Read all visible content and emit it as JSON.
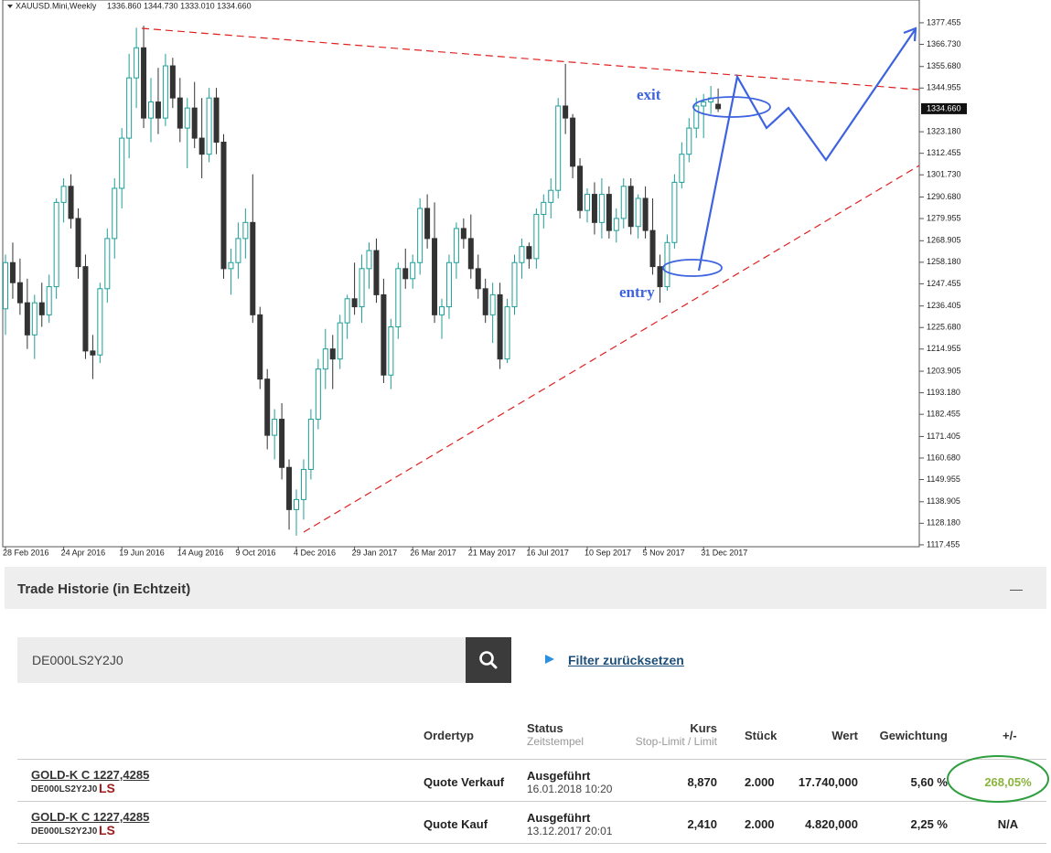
{
  "chart_data": {
    "type": "candlestick",
    "title": "XAUUSD.Mini,Weekly",
    "ohlc_label": "1336.860 1344.730 1333.010 1334.660",
    "up_color": "#1f9e98",
    "down_color": "#333333",
    "ylim": [
      1116.5,
      1388.8
    ],
    "yticks": [
      1377.455,
      {
        "value": 1366.73,
        "label": "1366.730"
      },
      {
        "value": 1355.68,
        "label": "1355.680"
      },
      1344.955,
      {
        "value": 1323.18,
        "label": "1323.180"
      },
      1312.455,
      {
        "value": 1301.73,
        "label": "1301.730"
      },
      {
        "value": 1290.68,
        "label": "1290.680"
      },
      1279.955,
      1268.905,
      {
        "value": 1258.18,
        "label": "1258.180"
      },
      1247.455,
      1236.405,
      {
        "value": 1225.68,
        "label": "1225.680"
      },
      1214.955,
      1203.905,
      {
        "value": 1193.18,
        "label": "1193.180"
      },
      1182.455,
      1171.405,
      {
        "value": 1160.68,
        "label": "1160.680"
      },
      1149.955,
      1138.905,
      {
        "value": 1128.18,
        "label": "1128.180"
      },
      1117.455
    ],
    "price_label": {
      "value": 1334.66,
      "label": "1334.660"
    },
    "categories": [
      "28 Feb 2016",
      null,
      null,
      null,
      null,
      null,
      null,
      null,
      "24 Apr 2016",
      null,
      null,
      null,
      null,
      null,
      null,
      null,
      "19 Jun 2016",
      null,
      null,
      null,
      null,
      null,
      null,
      null,
      "14 Aug 2016",
      null,
      null,
      null,
      null,
      null,
      null,
      null,
      "9 Oct 2016",
      null,
      null,
      null,
      null,
      null,
      null,
      null,
      "4 Dec 2016",
      null,
      null,
      null,
      null,
      null,
      null,
      null,
      "29 Jan 2017",
      null,
      null,
      null,
      null,
      null,
      null,
      null,
      "26 Mar 2017",
      null,
      null,
      null,
      null,
      null,
      null,
      null,
      "21 May 2017",
      null,
      null,
      null,
      null,
      null,
      null,
      null,
      "16 Jul 2017",
      null,
      null,
      null,
      null,
      null,
      null,
      null,
      "10 Sep 2017",
      null,
      null,
      null,
      null,
      null,
      null,
      null,
      "5 Nov 2017",
      null,
      null,
      null,
      null,
      null,
      null,
      null,
      "31 Dec 2017",
      null,
      null
    ],
    "ohlc": [
      [
        1235,
        1262,
        1222,
        1258
      ],
      [
        1258,
        1268,
        1240,
        1248
      ],
      [
        1248,
        1260,
        1232,
        1238
      ],
      [
        1238,
        1250,
        1215,
        1222
      ],
      [
        1222,
        1242,
        1210,
        1238
      ],
      [
        1238,
        1248,
        1226,
        1232
      ],
      [
        1232,
        1252,
        1228,
        1246
      ],
      [
        1246,
        1290,
        1240,
        1288
      ],
      [
        1288,
        1300,
        1278,
        1296
      ],
      [
        1296,
        1302,
        1275,
        1280
      ],
      [
        1280,
        1285,
        1250,
        1256
      ],
      [
        1256,
        1262,
        1210,
        1214
      ],
      [
        1214,
        1222,
        1200,
        1212
      ],
      [
        1212,
        1248,
        1208,
        1245
      ],
      [
        1245,
        1275,
        1238,
        1270
      ],
      [
        1270,
        1300,
        1260,
        1295
      ],
      [
        1295,
        1325,
        1285,
        1320
      ],
      [
        1320,
        1362,
        1310,
        1350
      ],
      [
        1350,
        1375,
        1335,
        1365
      ],
      [
        1365,
        1376,
        1325,
        1330
      ],
      [
        1330,
        1350,
        1318,
        1338
      ],
      [
        1338,
        1355,
        1322,
        1330
      ],
      [
        1330,
        1362,
        1326,
        1356
      ],
      [
        1356,
        1360,
        1335,
        1340
      ],
      [
        1340,
        1350,
        1318,
        1325
      ],
      [
        1325,
        1340,
        1305,
        1335
      ],
      [
        1335,
        1348,
        1315,
        1320
      ],
      [
        1320,
        1340,
        1300,
        1312
      ],
      [
        1312,
        1345,
        1308,
        1340
      ],
      [
        1340,
        1345,
        1312,
        1318
      ],
      [
        1318,
        1322,
        1250,
        1255
      ],
      [
        1255,
        1265,
        1242,
        1258
      ],
      [
        1258,
        1278,
        1250,
        1270
      ],
      [
        1270,
        1285,
        1260,
        1278
      ],
      [
        1278,
        1302,
        1228,
        1232
      ],
      [
        1232,
        1236,
        1195,
        1200
      ],
      [
        1200,
        1205,
        1165,
        1172
      ],
      [
        1172,
        1185,
        1160,
        1180
      ],
      [
        1180,
        1188,
        1150,
        1156
      ],
      [
        1156,
        1160,
        1125,
        1135
      ],
      [
        1135,
        1145,
        1122,
        1140
      ],
      [
        1140,
        1160,
        1130,
        1155
      ],
      [
        1155,
        1185,
        1150,
        1180
      ],
      [
        1180,
        1210,
        1175,
        1205
      ],
      [
        1205,
        1225,
        1195,
        1215
      ],
      [
        1215,
        1222,
        1195,
        1210
      ],
      [
        1210,
        1232,
        1205,
        1228
      ],
      [
        1228,
        1242,
        1220,
        1240
      ],
      [
        1240,
        1258,
        1232,
        1236
      ],
      [
        1236,
        1262,
        1228,
        1255
      ],
      [
        1255,
        1268,
        1245,
        1264
      ],
      [
        1264,
        1270,
        1238,
        1242
      ],
      [
        1242,
        1250,
        1198,
        1202
      ],
      [
        1202,
        1230,
        1195,
        1226
      ],
      [
        1226,
        1258,
        1220,
        1255
      ],
      [
        1255,
        1265,
        1245,
        1250
      ],
      [
        1250,
        1262,
        1245,
        1258
      ],
      [
        1258,
        1290,
        1252,
        1285
      ],
      [
        1285,
        1292,
        1265,
        1270
      ],
      [
        1270,
        1288,
        1228,
        1232
      ],
      [
        1232,
        1240,
        1220,
        1236
      ],
      [
        1236,
        1262,
        1230,
        1258
      ],
      [
        1258,
        1278,
        1250,
        1275
      ],
      [
        1275,
        1280,
        1265,
        1270
      ],
      [
        1270,
        1282,
        1250,
        1255
      ],
      [
        1255,
        1262,
        1240,
        1245
      ],
      [
        1245,
        1250,
        1228,
        1232
      ],
      [
        1232,
        1248,
        1218,
        1242
      ],
      [
        1242,
        1248,
        1205,
        1210
      ],
      [
        1210,
        1240,
        1208,
        1236
      ],
      [
        1236,
        1262,
        1232,
        1258
      ],
      [
        1258,
        1270,
        1250,
        1266
      ],
      [
        1266,
        1268,
        1255,
        1260
      ],
      [
        1260,
        1285,
        1255,
        1282
      ],
      [
        1282,
        1292,
        1275,
        1288
      ],
      [
        1288,
        1300,
        1280,
        1294
      ],
      [
        1294,
        1340,
        1290,
        1336
      ],
      [
        1336,
        1357,
        1322,
        1330
      ],
      [
        1330,
        1332,
        1300,
        1306
      ],
      [
        1306,
        1310,
        1280,
        1284
      ],
      [
        1284,
        1295,
        1278,
        1292
      ],
      [
        1292,
        1298,
        1272,
        1278
      ],
      [
        1278,
        1300,
        1270,
        1292
      ],
      [
        1292,
        1296,
        1270,
        1274
      ],
      [
        1274,
        1285,
        1268,
        1280
      ],
      [
        1280,
        1300,
        1275,
        1296
      ],
      [
        1296,
        1300,
        1272,
        1276
      ],
      [
        1276,
        1292,
        1270,
        1290
      ],
      [
        1290,
        1296,
        1270,
        1274
      ],
      [
        1274,
        1290,
        1252,
        1256
      ],
      [
        1256,
        1262,
        1238,
        1246
      ],
      [
        1246,
        1272,
        1244,
        1268
      ],
      [
        1268,
        1302,
        1265,
        1298
      ],
      [
        1298,
        1318,
        1295,
        1312
      ],
      [
        1312,
        1330,
        1308,
        1325
      ],
      [
        1325,
        1340,
        1320,
        1336
      ],
      [
        1336,
        1342,
        1320,
        1338
      ],
      [
        1338,
        1346,
        1332,
        1340
      ],
      [
        1336.86,
        1344.73,
        1333.01,
        1334.66
      ]
    ],
    "annotations": {
      "exit": "exit",
      "entry": "entry"
    }
  },
  "trade_history": {
    "title": "Trade Historie (in Echtzeit)",
    "search": "DE000LS2Y2J0",
    "reset_link": "Filter zurücksetzen",
    "columns": [
      {
        "title": "Ordertyp"
      },
      {
        "title": "Status",
        "subtitle": "Zeitstempel"
      },
      {
        "title": "Kurs",
        "subtitle": "Stop-Limit / Limit"
      },
      {
        "title": "Stück"
      },
      {
        "title": "Wert"
      },
      {
        "title": "Gewichtung"
      },
      {
        "title": "+/-"
      }
    ],
    "rows": [
      {
        "name": "GOLD-K C 1227,4285",
        "isin": "DE000LS2Y2J0",
        "logo": "LS",
        "ordertyp": "Quote Verkauf",
        "status": "Ausgeführt",
        "timestamp": "16.01.2018 10:20",
        "kurs": "8,870",
        "stueck": "2.000",
        "wert": "17.740,000",
        "gewichtung": "5,60 %",
        "change": "268,05%"
      },
      {
        "name": "GOLD-K C 1227,4285",
        "isin": "DE000LS2Y2J0",
        "logo": "LS",
        "ordertyp": "Quote Kauf",
        "status": "Ausgeführt",
        "timestamp": "13.12.2017 20:01",
        "kurs": "2,410",
        "stueck": "2.000",
        "wert": "4.820,000",
        "gewichtung": "2,25 %",
        "change": "N/A"
      }
    ]
  }
}
